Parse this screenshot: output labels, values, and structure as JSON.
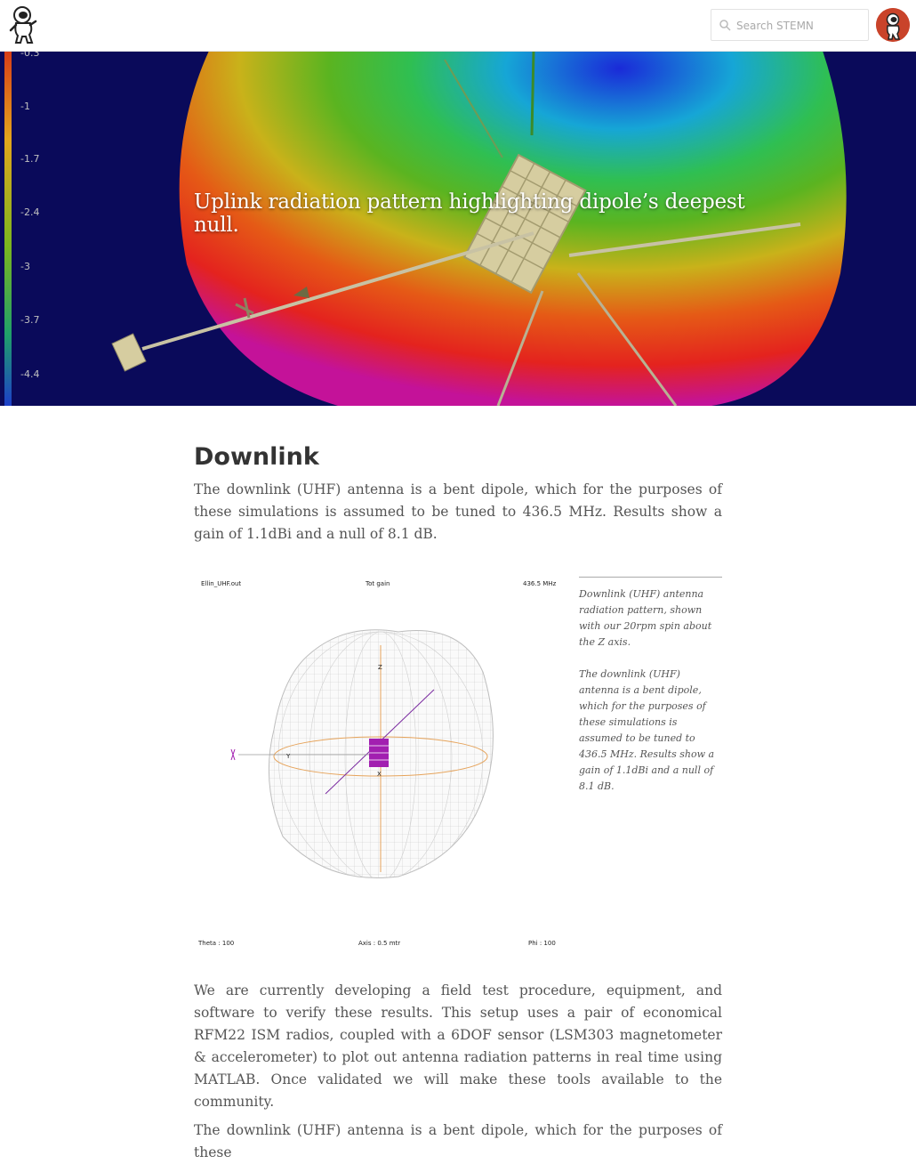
{
  "header": {
    "search_placeholder": "Search STEMN",
    "logo_icon": "astronaut-logo-icon",
    "avatar_icon": "user-avatar-icon"
  },
  "hero": {
    "title": "Uplink radiation pattern highlighting dipole’s deepest null.",
    "scale_labels": [
      "-0.3",
      "-1",
      "-1.7",
      "-2.4",
      "-3",
      "-3.7",
      "-4.4"
    ]
  },
  "article": {
    "heading": "Downlink",
    "intro": "The downlink (UHF) antenna is a bent dipole, which for the purposes of these simulations is assumed to be tuned to 436.5 MHz. Results show a gain of 1.1dBi and a null of 8.1 dB.",
    "figure": {
      "top_left": "Ellin_UHF.out",
      "top_center": "Tot gain",
      "top_right": "436.5 MHz",
      "bottom_left": "Theta : 100",
      "bottom_center": "Axis : 0.5 mtr",
      "bottom_right": "Phi : 100",
      "axis_z": "Z",
      "axis_y": "Y",
      "axis_x": "X"
    },
    "caption": {
      "p1": "Downlink (UHF) antenna radiation pattern, shown with our 20rpm spin about the Z axis.",
      "p2": "The downlink (UHF) antenna is a bent dipole, which for the purposes of these simulations is assumed to be tuned to 436.5 MHz. Results show a gain of 1.1dBi and a null of 8.1 dB."
    },
    "para2": "We are currently developing a field test procedure, equipment, and software to verify these results. This setup uses a pair of economical RFM22 ISM radios, coupled with a 6DOF sensor (LSM303 magnetometer & accelerometer) to plot out antenna radiation patterns in real time using MATLAB. Once validated we will make these tools available to the community.",
    "para3": "The downlink (UHF) antenna is a bent dipole, which for the purposes of these"
  },
  "colors": {
    "hero_background": "#0a0a5a",
    "avatar_background": "#c9432a",
    "text": "#555555"
  }
}
